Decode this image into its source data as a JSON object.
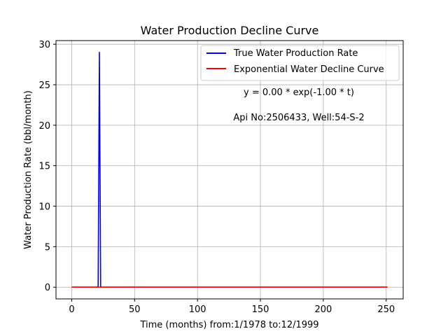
{
  "chart_data": {
    "type": "line",
    "title": "Water Production Decline Curve",
    "xlabel": "Time (months) from:1/1978 to:12/1999",
    "ylabel": "Water Production Rate (bbl/month)",
    "xlim": [
      -12.5,
      263.5
    ],
    "ylim": [
      -1.45,
      30.45
    ],
    "xticks": [
      0,
      50,
      100,
      150,
      200,
      250
    ],
    "yticks": [
      0,
      5,
      10,
      15,
      20,
      25,
      30
    ],
    "grid": true,
    "legend_position": "upper-right",
    "series": [
      {
        "name": "True Water Production Rate",
        "color": "#0000ff",
        "x": [
          0,
          21,
          22,
          23,
          24,
          251
        ],
        "y": [
          0,
          0,
          29,
          0,
          0,
          0
        ]
      },
      {
        "name": "Exponential Water Decline Curve",
        "color": "#ff0000",
        "x": [
          0,
          251
        ],
        "y": [
          0,
          0
        ]
      }
    ],
    "annotations": [
      {
        "text": "y = 0.00 * exp(-1.00 * t)"
      },
      {
        "text": "Api No:2506433, Well:54-S-2"
      }
    ]
  }
}
